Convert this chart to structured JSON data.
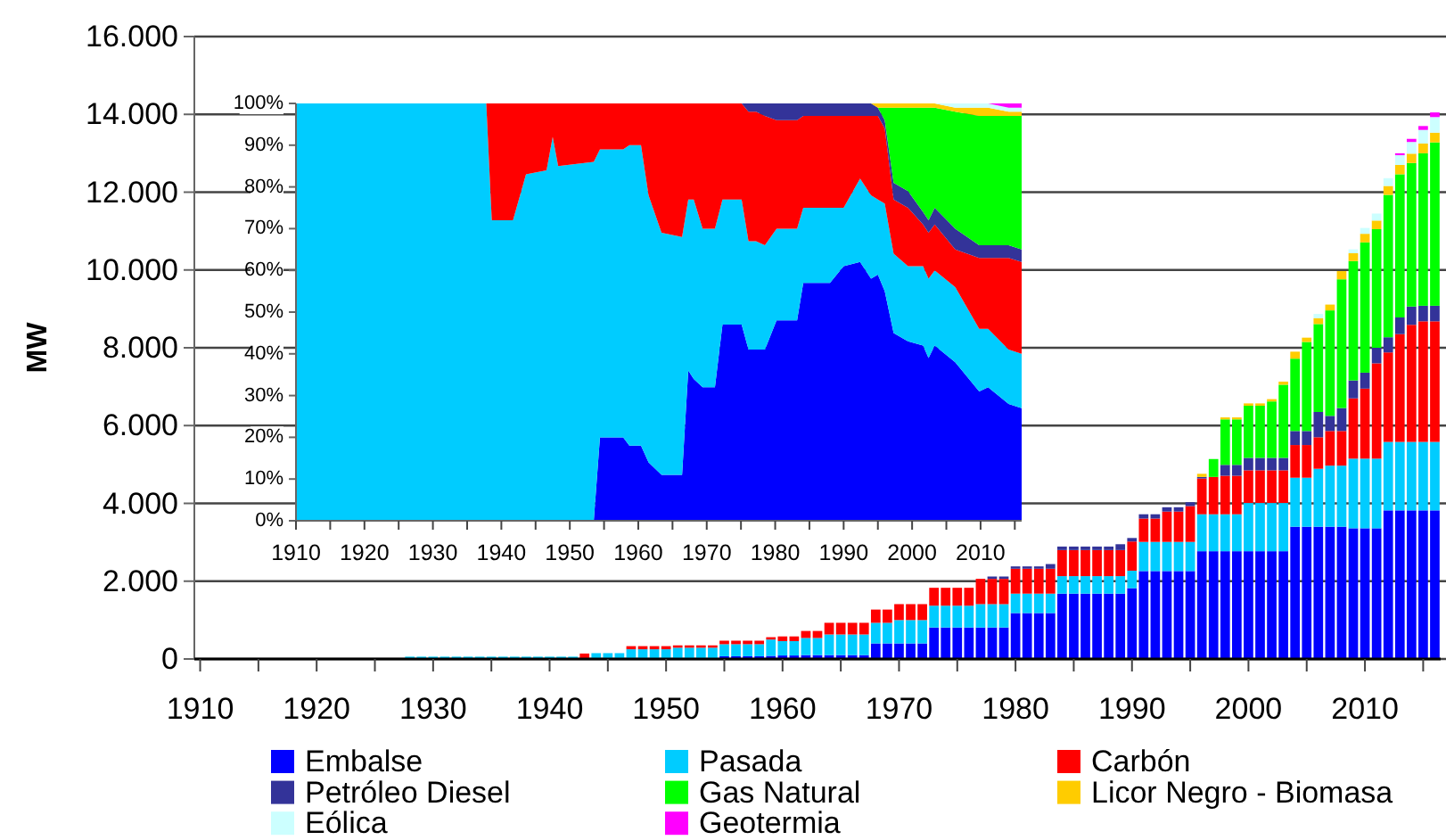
{
  "chart_data": [
    {
      "type": "bar",
      "stacked": true,
      "ylabel": "MW",
      "xlim": [
        1909.5,
        2016.5
      ],
      "ylim": [
        0,
        16000
      ],
      "grid": "y",
      "legend": "bottom",
      "xticks": [
        1910,
        {
          "value": 1915,
          "label": null
        },
        1920,
        {
          "value": 1925,
          "label": null
        },
        1930,
        {
          "value": 1935,
          "label": null
        },
        1940,
        {
          "value": 1945,
          "label": null
        },
        1950,
        {
          "value": 1955,
          "label": null
        },
        1960,
        {
          "value": 1965,
          "label": null
        },
        1970,
        {
          "value": 1975,
          "label": null
        },
        1980,
        {
          "value": 1985,
          "label": null
        },
        1990,
        {
          "value": 1995,
          "label": null
        },
        2000,
        {
          "value": 2005,
          "label": null
        },
        2010,
        {
          "value": 2015,
          "label": null
        }
      ],
      "yticks": [
        0,
        {
          "value": 2000,
          "label": "2.000"
        },
        {
          "value": 4000,
          "label": "4.000"
        },
        {
          "value": 6000,
          "label": "6.000"
        },
        {
          "value": 8000,
          "label": "8.000"
        },
        {
          "value": 10000,
          "label": "10.000"
        },
        {
          "value": 12000,
          "label": "12.000"
        },
        {
          "value": 14000,
          "label": "14.000"
        },
        {
          "value": 16000,
          "label": "16.000"
        }
      ],
      "x": [
        1928,
        1929,
        1930,
        1931,
        1932,
        1933,
        1934,
        1935,
        1936,
        1937,
        1938,
        1939,
        1940,
        1941,
        1942,
        1943,
        1944,
        1945,
        1946,
        1947,
        1948,
        1949,
        1950,
        1951,
        1952,
        1953,
        1954,
        1955,
        1956,
        1957,
        1958,
        1959,
        1960,
        1961,
        1962,
        1963,
        1964,
        1965,
        1966,
        1967,
        1968,
        1969,
        1970,
        1971,
        1972,
        1973,
        1974,
        1975,
        1976,
        1977,
        1978,
        1979,
        1980,
        1981,
        1982,
        1983,
        1984,
        1985,
        1986,
        1987,
        1988,
        1989,
        1990,
        1991,
        1992,
        1993,
        1994,
        1995,
        1996,
        1997,
        1998,
        1999,
        2000,
        2001,
        2002,
        2003,
        2004,
        2005,
        2006,
        2007,
        2008,
        2009,
        2010,
        2011,
        2012,
        2013,
        2014,
        2015,
        2016
      ],
      "series": [
        {
          "name": "Embalse",
          "color": "#0000ff",
          "values": [
            0,
            0,
            0,
            0,
            0,
            0,
            0,
            0,
            0,
            0,
            0,
            0,
            0,
            0,
            0,
            0,
            0,
            0,
            0,
            0,
            0,
            0,
            0,
            0,
            0,
            0,
            0,
            70,
            70,
            70,
            70,
            80,
            90,
            90,
            100,
            100,
            100,
            100,
            100,
            100,
            400,
            400,
            400,
            400,
            400,
            810,
            810,
            810,
            810,
            810,
            810,
            810,
            1180,
            1180,
            1180,
            1180,
            1680,
            1680,
            1680,
            1680,
            1680,
            1680,
            1820,
            2260,
            2260,
            2260,
            2260,
            2260,
            2770,
            2770,
            2770,
            2770,
            2770,
            2770,
            2770,
            2770,
            3400,
            3400,
            3400,
            3400,
            3400,
            3360,
            3360,
            3360,
            3820,
            3820,
            3820,
            3820,
            3820
          ]
        },
        {
          "name": "Pasada",
          "color": "#00ccff",
          "values": [
            60,
            60,
            60,
            60,
            60,
            60,
            60,
            60,
            60,
            60,
            60,
            60,
            60,
            60,
            60,
            null,
            150,
            150,
            150,
            250,
            250,
            250,
            250,
            290,
            290,
            290,
            290,
            310,
            310,
            310,
            310,
            420,
            370,
            370,
            440,
            440,
            530,
            530,
            530,
            530,
            530,
            530,
            600,
            600,
            600,
            560,
            560,
            560,
            560,
            600,
            600,
            600,
            500,
            500,
            500,
            500,
            450,
            450,
            450,
            450,
            450,
            450,
            450,
            750,
            750,
            750,
            750,
            750,
            950,
            950,
            950,
            950,
            1240,
            1240,
            1240,
            1240,
            1260,
            1260,
            1490,
            1570,
            1570,
            1790,
            1790,
            1790,
            1760,
            1760,
            1760,
            1760,
            1760
          ]
        },
        {
          "name": "Carbón",
          "color": "#ff0000",
          "values": [
            0,
            0,
            0,
            0,
            0,
            0,
            0,
            0,
            0,
            0,
            0,
            0,
            0,
            0,
            0,
            140,
            0,
            0,
            0,
            80,
            80,
            80,
            80,
            60,
            60,
            60,
            60,
            90,
            90,
            90,
            90,
            60,
            120,
            120,
            180,
            180,
            300,
            300,
            300,
            300,
            340,
            340,
            410,
            410,
            410,
            460,
            460,
            460,
            460,
            650,
            650,
            650,
            640,
            640,
            640,
            640,
            670,
            670,
            670,
            670,
            670,
            670,
            750,
            600,
            600,
            780,
            780,
            920,
            920,
            960,
            990,
            990,
            840,
            840,
            840,
            840,
            840,
            840,
            810,
            890,
            890,
            1550,
            1800,
            2450,
            2300,
            2770,
            3010,
            3100,
            3100
          ]
        },
        {
          "name": "Petróleo Diesel",
          "color": "#333399",
          "values": [
            0,
            0,
            0,
            0,
            0,
            0,
            0,
            0,
            0,
            0,
            0,
            0,
            0,
            0,
            0,
            0,
            0,
            0,
            0,
            0,
            0,
            0,
            0,
            0,
            0,
            0,
            0,
            0,
            0,
            0,
            0,
            0,
            0,
            0,
            0,
            0,
            0,
            0,
            0,
            0,
            0,
            0,
            0,
            0,
            0,
            0,
            0,
            0,
            0,
            0,
            60,
            60,
            60,
            60,
            60,
            120,
            90,
            90,
            90,
            90,
            90,
            150,
            90,
            110,
            110,
            110,
            110,
            100,
            40,
            0,
            280,
            280,
            320,
            320,
            320,
            320,
            360,
            360,
            650,
            390,
            590,
            460,
            410,
            400,
            390,
            430,
            470,
            400,
            400
          ]
        },
        {
          "name": "Gas Natural",
          "color": "#00ff00",
          "values": [
            0,
            0,
            0,
            0,
            0,
            0,
            0,
            0,
            0,
            0,
            0,
            0,
            0,
            0,
            0,
            0,
            0,
            0,
            0,
            0,
            0,
            0,
            0,
            0,
            0,
            0,
            0,
            0,
            0,
            0,
            0,
            0,
            0,
            0,
            0,
            0,
            0,
            0,
            0,
            0,
            0,
            0,
            0,
            0,
            0,
            0,
            0,
            0,
            0,
            0,
            0,
            0,
            0,
            0,
            0,
            0,
            0,
            0,
            0,
            0,
            0,
            0,
            0,
            0,
            0,
            0,
            0,
            0,
            0,
            460,
            1170,
            1170,
            1340,
            1340,
            1450,
            1880,
            1860,
            2290,
            2260,
            2710,
            3310,
            3070,
            3350,
            3050,
            3660,
            3680,
            3690,
            3920,
            4200
          ]
        },
        {
          "name": "Licor Negro - Biomasa",
          "color": "#ffcc00",
          "values": [
            0,
            0,
            0,
            0,
            0,
            0,
            0,
            0,
            0,
            0,
            0,
            0,
            0,
            0,
            0,
            0,
            0,
            0,
            0,
            0,
            0,
            0,
            0,
            0,
            0,
            0,
            0,
            0,
            0,
            0,
            0,
            0,
            0,
            0,
            0,
            0,
            0,
            0,
            0,
            0,
            0,
            0,
            0,
            0,
            0,
            0,
            0,
            0,
            0,
            0,
            0,
            0,
            0,
            0,
            0,
            0,
            0,
            0,
            0,
            0,
            0,
            0,
            0,
            0,
            0,
            0,
            0,
            0,
            80,
            0,
            50,
            50,
            60,
            60,
            60,
            80,
            180,
            110,
            150,
            150,
            210,
            200,
            220,
            220,
            230,
            240,
            240,
            250,
            250
          ]
        },
        {
          "name": "Eólica",
          "color": "#ccffff",
          "values": [
            0,
            0,
            0,
            0,
            0,
            0,
            0,
            0,
            0,
            0,
            0,
            0,
            0,
            0,
            0,
            0,
            0,
            0,
            0,
            0,
            0,
            0,
            0,
            0,
            0,
            0,
            0,
            0,
            0,
            0,
            0,
            0,
            0,
            0,
            0,
            0,
            0,
            0,
            0,
            0,
            0,
            0,
            0,
            0,
            0,
            0,
            0,
            0,
            0,
            0,
            0,
            0,
            0,
            0,
            0,
            0,
            0,
            0,
            0,
            0,
            0,
            0,
            0,
            0,
            0,
            0,
            0,
            0,
            0,
            0,
            0,
            0,
            0,
            0,
            0,
            0,
            0,
            0,
            110,
            0,
            0,
            100,
            150,
            180,
            200,
            250,
            300,
            350,
            400
          ]
        },
        {
          "name": "Geotermia",
          "color": "#ff00ff",
          "values": [
            0,
            0,
            0,
            0,
            0,
            0,
            0,
            0,
            0,
            0,
            0,
            0,
            0,
            0,
            0,
            0,
            0,
            0,
            0,
            0,
            0,
            0,
            0,
            0,
            0,
            0,
            0,
            0,
            0,
            0,
            0,
            0,
            0,
            0,
            0,
            0,
            0,
            0,
            0,
            0,
            0,
            0,
            0,
            0,
            0,
            0,
            0,
            0,
            0,
            0,
            0,
            0,
            0,
            0,
            0,
            0,
            0,
            0,
            0,
            0,
            0,
            0,
            0,
            0,
            0,
            0,
            0,
            0,
            0,
            0,
            0,
            0,
            0,
            0,
            0,
            0,
            0,
            0,
            0,
            0,
            0,
            0,
            0,
            0,
            0,
            50,
            80,
            100,
            120
          ]
        }
      ]
    },
    {
      "type": "area",
      "stacked": true,
      "xlim": [
        1910,
        2016
      ],
      "ylim": [
        0,
        100
      ],
      "xticks": [
        1910,
        {
          "value": 1915,
          "label": null
        },
        1920,
        {
          "value": 1925,
          "label": null
        },
        1930,
        {
          "value": 1935,
          "label": null
        },
        1940,
        {
          "value": 1945,
          "label": null
        },
        1950,
        {
          "value": 1955,
          "label": null
        },
        1960,
        {
          "value": 1965,
          "label": null
        },
        1970,
        {
          "value": 1975,
          "label": null
        },
        1980,
        {
          "value": 1985,
          "label": null
        },
        1990,
        {
          "value": 1995,
          "label": null
        },
        2000,
        {
          "value": 2005,
          "label": null
        },
        2010,
        {
          "value": 2015,
          "label": null
        }
      ],
      "yticks": [
        {
          "value": 0,
          "label": "0%"
        },
        {
          "value": 10,
          "label": "10%"
        },
        {
          "value": 20,
          "label": "20%"
        },
        {
          "value": 30,
          "label": "30%"
        },
        {
          "value": 40,
          "label": "40%"
        },
        {
          "value": 50,
          "label": "50%"
        },
        {
          "value": 60,
          "label": "60%"
        },
        {
          "value": 70,
          "label": "70%"
        },
        {
          "value": 80,
          "label": "80%"
        },
        {
          "value": 90,
          "label": "90%"
        },
        {
          "value": 100,
          "label": "100%"
        }
      ],
      "x": [
        1910,
        1937.8,
        1938.6,
        1941.7,
        1943.6,
        1946.6,
        1947.5,
        1948.3,
        1953.5,
        1954.4,
        1957.8,
        1958.7,
        1960.4,
        1961.5,
        1963.4,
        1966.4,
        1967.3,
        1968.1,
        1969.4,
        1971.2,
        1972.3,
        1975.1,
        1976.1,
        1977.2,
        1978.5,
        1980.2,
        1983.2,
        1984.1,
        1988,
        1990,
        1992.4,
        1994,
        1995,
        1996,
        1997.3,
        1999.4,
        2001.6,
        2002.4,
        2003.3,
        2006.3,
        2009.8,
        2011.1,
        2014.1,
        2016
      ],
      "series": [
        {
          "color": "#0000ff",
          "values": [
            0,
            0,
            0,
            0,
            0,
            0,
            0,
            0,
            0,
            20,
            20,
            18,
            18,
            14,
            11,
            11,
            36,
            34,
            32,
            32,
            47,
            47,
            41,
            41,
            41,
            48,
            48,
            57,
            57,
            61,
            62,
            58,
            59,
            55,
            45,
            43,
            42,
            39,
            42,
            38,
            31,
            32,
            28,
            27
          ]
        },
        {
          "color": "#00ccff",
          "values": [
            100,
            100,
            72,
            72,
            83,
            84,
            92,
            85,
            86,
            69,
            69,
            72,
            72,
            64,
            58,
            57,
            41,
            43,
            38,
            38,
            30,
            30,
            26,
            26,
            25,
            22,
            22,
            18,
            18,
            14,
            20,
            20,
            18,
            21,
            19,
            18,
            19,
            19,
            18,
            18,
            15,
            14,
            13,
            13
          ]
        },
        {
          "color": "#ff0000",
          "values": [
            0,
            0,
            28,
            28,
            17,
            16,
            8,
            15,
            14,
            11,
            11,
            10,
            10,
            22,
            31,
            32,
            23,
            23,
            30,
            30,
            23,
            23,
            31,
            31,
            31,
            26,
            26,
            22,
            22,
            22,
            15,
            19,
            20,
            18,
            13,
            14,
            10,
            11,
            11,
            9,
            17,
            17,
            22,
            22
          ]
        },
        {
          "color": "#333399",
          "values": [
            0,
            0,
            0,
            0,
            0,
            0,
            0,
            0,
            0,
            0,
            0,
            0,
            0,
            0,
            0,
            0,
            0,
            0,
            0,
            0,
            0,
            0,
            2,
            2,
            3,
            4,
            4,
            3,
            3,
            3,
            3,
            3,
            2,
            2,
            4,
            4,
            3,
            3,
            4,
            5,
            3,
            3,
            3,
            3
          ]
        },
        {
          "color": "#00ff00",
          "values": [
            0,
            0,
            0,
            0,
            0,
            0,
            0,
            0,
            0,
            0,
            0,
            0,
            0,
            0,
            0,
            0,
            0,
            0,
            0,
            0,
            0,
            0,
            0,
            0,
            0,
            0,
            0,
            0,
            0,
            0,
            0,
            0,
            0,
            3,
            18,
            20,
            25,
            27,
            24,
            28,
            31,
            31,
            31,
            32
          ]
        },
        {
          "color": "#ffcc00",
          "values": [
            0,
            0,
            0,
            0,
            0,
            0,
            0,
            0,
            0,
            0,
            0,
            0,
            0,
            0,
            0,
            0,
            0,
            0,
            0,
            0,
            0,
            0,
            0,
            0,
            0,
            0,
            0,
            0,
            0,
            0,
            0,
            0,
            1,
            1,
            1,
            1,
            1,
            1,
            1,
            1,
            2,
            2,
            1,
            1
          ]
        },
        {
          "color": "#ccffff",
          "values": [
            0,
            0,
            0,
            0,
            0,
            0,
            0,
            0,
            0,
            0,
            0,
            0,
            0,
            0,
            0,
            0,
            0,
            0,
            0,
            0,
            0,
            0,
            0,
            0,
            0,
            0,
            0,
            0,
            0,
            0,
            0,
            0,
            0,
            0,
            0,
            0,
            0,
            0,
            0,
            1,
            1,
            1,
            1,
            1
          ]
        },
        {
          "color": "#ff00ff",
          "values": [
            0,
            0,
            0,
            0,
            0,
            0,
            0,
            0,
            0,
            0,
            0,
            0,
            0,
            0,
            0,
            0,
            0,
            0,
            0,
            0,
            0,
            0,
            0,
            0,
            0,
            0,
            0,
            0,
            0,
            0,
            0,
            0,
            0,
            0,
            0,
            0,
            0,
            0,
            0,
            0,
            0,
            0,
            1,
            1
          ]
        }
      ]
    }
  ]
}
